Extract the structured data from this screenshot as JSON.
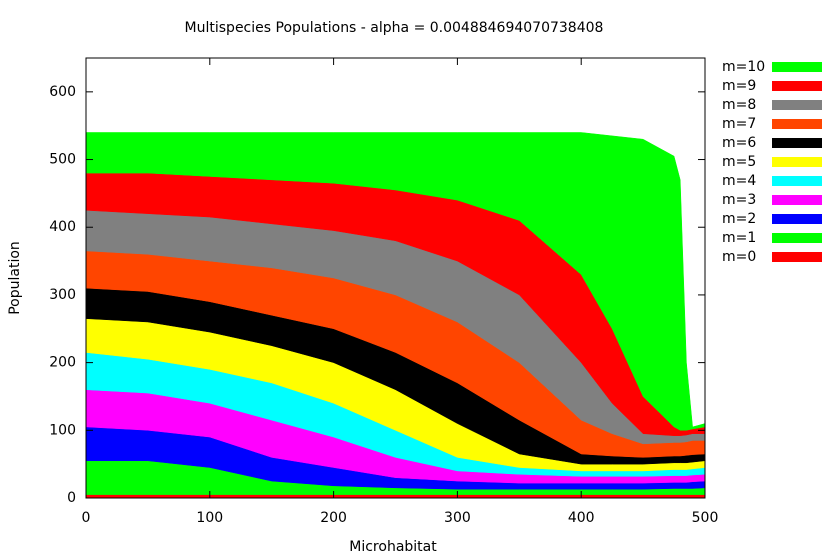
{
  "chart_data": {
    "type": "area",
    "stacked": true,
    "title": "Multispecies Populations - alpha = 0.004884694070738408",
    "xlabel": "Microhabitat",
    "ylabel": "Population",
    "x": [
      0,
      50,
      100,
      150,
      200,
      250,
      300,
      350,
      400,
      425,
      450,
      475,
      480,
      485,
      490,
      500
    ],
    "xlim": [
      0,
      500
    ],
    "xticks": [
      0,
      100,
      200,
      300,
      400,
      500
    ],
    "ylim": [
      0,
      650
    ],
    "yticks": [
      0,
      100,
      200,
      300,
      400,
      500,
      600
    ],
    "legend": "right",
    "series": [
      {
        "name": "m=0",
        "color": "#ff0000",
        "values": [
          5,
          5,
          5,
          5,
          5,
          5,
          5,
          5,
          5,
          5,
          5,
          5,
          5,
          5,
          5,
          5
        ]
      },
      {
        "name": "m=1",
        "color": "#00ff00",
        "values": [
          50,
          50,
          40,
          20,
          13,
          10,
          8,
          8,
          8,
          8,
          8,
          9,
          9,
          9,
          9,
          10
        ]
      },
      {
        "name": "m=2",
        "color": "#0000ff",
        "values": [
          50,
          45,
          45,
          35,
          27,
          15,
          12,
          9,
          9,
          9,
          9,
          9,
          9,
          9,
          10,
          10
        ]
      },
      {
        "name": "m=3",
        "color": "#ff00ff",
        "values": [
          55,
          55,
          50,
          55,
          45,
          30,
          15,
          13,
          10,
          10,
          10,
          10,
          10,
          10,
          10,
          10
        ]
      },
      {
        "name": "m=4",
        "color": "#00ffff",
        "values": [
          55,
          50,
          50,
          55,
          50,
          40,
          20,
          10,
          8,
          8,
          8,
          9,
          9,
          9,
          9,
          10
        ]
      },
      {
        "name": "m=5",
        "color": "#ffff00",
        "values": [
          50,
          55,
          55,
          55,
          60,
          60,
          50,
          20,
          10,
          10,
          10,
          10,
          10,
          10,
          10,
          10
        ]
      },
      {
        "name": "m=6",
        "color": "#000000",
        "values": [
          45,
          45,
          45,
          45,
          50,
          55,
          60,
          50,
          15,
          12,
          10,
          10,
          10,
          11,
          11,
          10
        ]
      },
      {
        "name": "m=7",
        "color": "#ff4500",
        "values": [
          55,
          55,
          60,
          70,
          75,
          85,
          90,
          85,
          50,
          33,
          20,
          20,
          20,
          20,
          21,
          20
        ]
      },
      {
        "name": "m=8",
        "color": "#808080",
        "values": [
          60,
          60,
          65,
          65,
          70,
          80,
          90,
          100,
          85,
          45,
          15,
          10,
          10,
          10,
          10,
          10
        ]
      },
      {
        "name": "m=9",
        "color": "#ff0000",
        "values": [
          55,
          60,
          60,
          65,
          70,
          75,
          90,
          110,
          130,
          110,
          55,
          13,
          8,
          7,
          7,
          10
        ]
      },
      {
        "name": "m=10",
        "color": "#00ff00",
        "values": [
          60,
          60,
          65,
          70,
          75,
          85,
          100,
          130,
          210,
          285,
          380,
          400,
          370,
          100,
          3,
          5
        ]
      }
    ]
  }
}
